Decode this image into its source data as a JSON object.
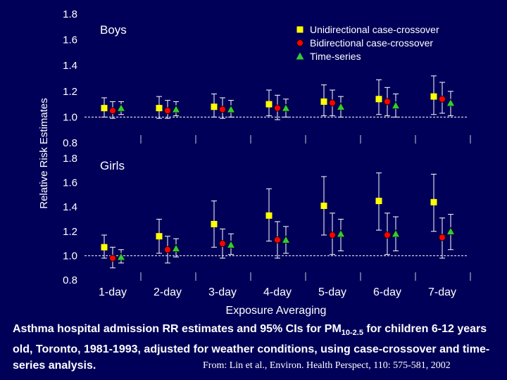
{
  "chart_data": [
    {
      "type": "scatter",
      "title": "Boys",
      "categories": [
        "1-day",
        "2-day",
        "3-day",
        "4-day",
        "5-day",
        "6-day",
        "7-day"
      ],
      "ylim": [
        0.8,
        1.8
      ],
      "yticks": [
        "0.8",
        "1.0",
        "1.2",
        "1.4",
        "1.6",
        "1.8"
      ],
      "reference_line": 1.0,
      "series": [
        {
          "name": "Unidirectional case-crossover",
          "marker": "square",
          "color": "#ffff00",
          "values": [
            1.07,
            1.07,
            1.08,
            1.1,
            1.12,
            1.14,
            1.16
          ],
          "lower": [
            1.0,
            0.99,
            1.0,
            1.01,
            1.01,
            1.02,
            1.02
          ],
          "upper": [
            1.15,
            1.16,
            1.18,
            1.21,
            1.25,
            1.29,
            1.32
          ]
        },
        {
          "name": "Bidirectional case-crossover",
          "marker": "circle",
          "color": "#ff0000",
          "values": [
            1.05,
            1.05,
            1.06,
            1.07,
            1.11,
            1.12,
            1.14
          ],
          "lower": [
            0.99,
            0.99,
            0.99,
            0.98,
            1.01,
            1.01,
            1.03
          ],
          "upper": [
            1.12,
            1.13,
            1.15,
            1.17,
            1.21,
            1.23,
            1.27
          ]
        },
        {
          "name": "Time-series",
          "marker": "triangle",
          "color": "#33cc33",
          "values": [
            1.07,
            1.06,
            1.06,
            1.07,
            1.08,
            1.09,
            1.11
          ],
          "lower": [
            1.02,
            1.01,
            1.0,
            1.0,
            1.0,
            1.0,
            1.01
          ],
          "upper": [
            1.12,
            1.12,
            1.13,
            1.14,
            1.16,
            1.18,
            1.2
          ]
        }
      ]
    },
    {
      "type": "scatter",
      "title": "Girls",
      "categories": [
        "1-day",
        "2-day",
        "3-day",
        "4-day",
        "5-day",
        "6-day",
        "7-day"
      ],
      "ylim": [
        0.8,
        1.8
      ],
      "yticks": [
        "0.8",
        "1.0",
        "1.2",
        "1.4",
        "1.6",
        "1.8"
      ],
      "reference_line": 1.0,
      "series": [
        {
          "name": "Unidirectional case-crossover",
          "marker": "square",
          "color": "#ffff00",
          "values": [
            1.07,
            1.16,
            1.26,
            1.33,
            1.41,
            1.45,
            1.44
          ],
          "lower": [
            0.98,
            1.02,
            1.07,
            1.12,
            1.17,
            1.21,
            1.2
          ],
          "upper": [
            1.17,
            1.3,
            1.45,
            1.55,
            1.65,
            1.68,
            1.67
          ]
        },
        {
          "name": "Bidirectional case-crossover",
          "marker": "circle",
          "color": "#ff0000",
          "values": [
            0.98,
            1.05,
            1.1,
            1.13,
            1.17,
            1.17,
            1.15
          ],
          "lower": [
            0.9,
            0.94,
            0.98,
            0.98,
            1.01,
            1.01,
            0.98
          ],
          "upper": [
            1.07,
            1.16,
            1.22,
            1.28,
            1.35,
            1.35,
            1.31
          ]
        },
        {
          "name": "Time-series",
          "marker": "triangle",
          "color": "#33cc33",
          "values": [
            0.99,
            1.06,
            1.09,
            1.13,
            1.18,
            1.18,
            1.2
          ],
          "lower": [
            0.94,
            0.99,
            1.01,
            1.02,
            1.04,
            1.04,
            1.05
          ],
          "upper": [
            1.05,
            1.14,
            1.18,
            1.24,
            1.3,
            1.32,
            1.34
          ]
        }
      ]
    }
  ],
  "labels": {
    "y_axis": "Relative Risk Estimates",
    "x_axis": "Exposure Averaging"
  },
  "caption": {
    "before_sub": "Asthma hospital admission RR estimates and 95% CIs for PM",
    "sub": "10-2.5",
    "after_sub": " for children 6-12 years old, Toronto, 1981-1993, adjusted for weather conditions, using case-crossover and time-series analysis."
  },
  "citation": "From: Lin et al., Environ. Health Perspect, 110: 575-581, 2002"
}
